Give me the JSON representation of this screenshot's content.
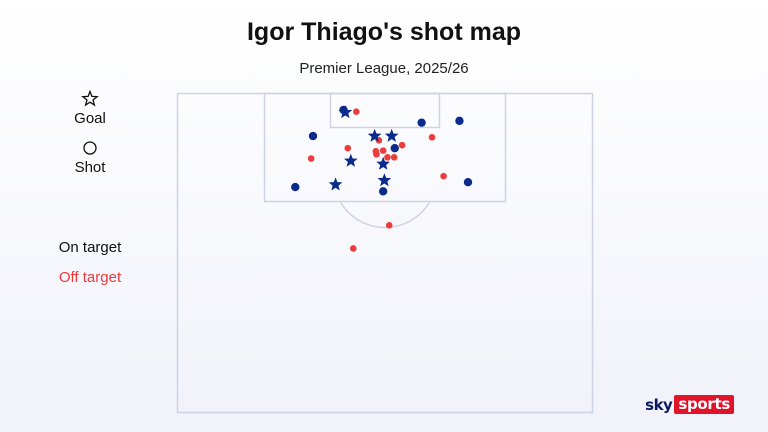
{
  "header": {
    "title": "Igor Thiago's shot map",
    "subtitle": "Premier League, 2025/26"
  },
  "legend": {
    "goal_label": "Goal",
    "shot_label": "Shot",
    "on_target_label": "On target",
    "off_target_label": "Off target"
  },
  "colors": {
    "on_target": "#0b2a8a",
    "off_target": "#ee3b3b",
    "pitch_lines": "#cdd3e4"
  },
  "brand": {
    "part1": "sky",
    "part2": "sports"
  },
  "chart_data": {
    "type": "scatter",
    "title": "Igor Thiago's shot map",
    "subtitle": "Premier League, 2025/26",
    "x_range": [
      0,
      68
    ],
    "y_range": [
      0,
      52.5
    ],
    "series": [
      {
        "name": "On target",
        "color": "#0b2a8a",
        "points": [
          {
            "x": 27.5,
            "y": 3.1,
            "outcome": "Goal"
          },
          {
            "x": 32.3,
            "y": 7.0,
            "outcome": "Goal"
          },
          {
            "x": 35.1,
            "y": 7.0,
            "outcome": "Goal"
          },
          {
            "x": 28.4,
            "y": 11.1,
            "outcome": "Goal"
          },
          {
            "x": 33.7,
            "y": 11.6,
            "outcome": "Goal"
          },
          {
            "x": 25.9,
            "y": 15.0,
            "outcome": "Goal"
          },
          {
            "x": 33.9,
            "y": 14.3,
            "outcome": "Goal"
          },
          {
            "x": 27.2,
            "y": 2.7,
            "outcome": "Shot"
          },
          {
            "x": 40.0,
            "y": 4.8,
            "outcome": "Shot"
          },
          {
            "x": 46.2,
            "y": 4.5,
            "outcome": "Shot"
          },
          {
            "x": 22.2,
            "y": 7.0,
            "outcome": "Shot"
          },
          {
            "x": 35.6,
            "y": 9.0,
            "outcome": "Shot"
          },
          {
            "x": 19.3,
            "y": 15.4,
            "outcome": "Shot"
          },
          {
            "x": 33.7,
            "y": 16.1,
            "outcome": "Shot"
          },
          {
            "x": 47.6,
            "y": 14.6,
            "outcome": "Shot"
          }
        ]
      },
      {
        "name": "Off target",
        "color": "#ee3b3b",
        "points": [
          {
            "x": 29.3,
            "y": 3.0,
            "outcome": "Shot"
          },
          {
            "x": 21.9,
            "y": 10.7,
            "outcome": "Shot"
          },
          {
            "x": 27.9,
            "y": 9.0,
            "outcome": "Shot"
          },
          {
            "x": 33.0,
            "y": 7.7,
            "outcome": "Shot"
          },
          {
            "x": 32.5,
            "y": 9.5,
            "outcome": "Shot"
          },
          {
            "x": 33.7,
            "y": 9.4,
            "outcome": "Shot"
          },
          {
            "x": 36.8,
            "y": 8.5,
            "outcome": "Shot"
          },
          {
            "x": 41.7,
            "y": 7.2,
            "outcome": "Shot"
          },
          {
            "x": 32.6,
            "y": 10.0,
            "outcome": "Shot"
          },
          {
            "x": 34.4,
            "y": 10.5,
            "outcome": "Shot"
          },
          {
            "x": 35.5,
            "y": 10.5,
            "outcome": "Shot"
          },
          {
            "x": 43.6,
            "y": 13.6,
            "outcome": "Shot"
          },
          {
            "x": 34.7,
            "y": 21.7,
            "outcome": "Shot"
          },
          {
            "x": 28.8,
            "y": 25.5,
            "outcome": "Shot"
          }
        ]
      }
    ]
  }
}
